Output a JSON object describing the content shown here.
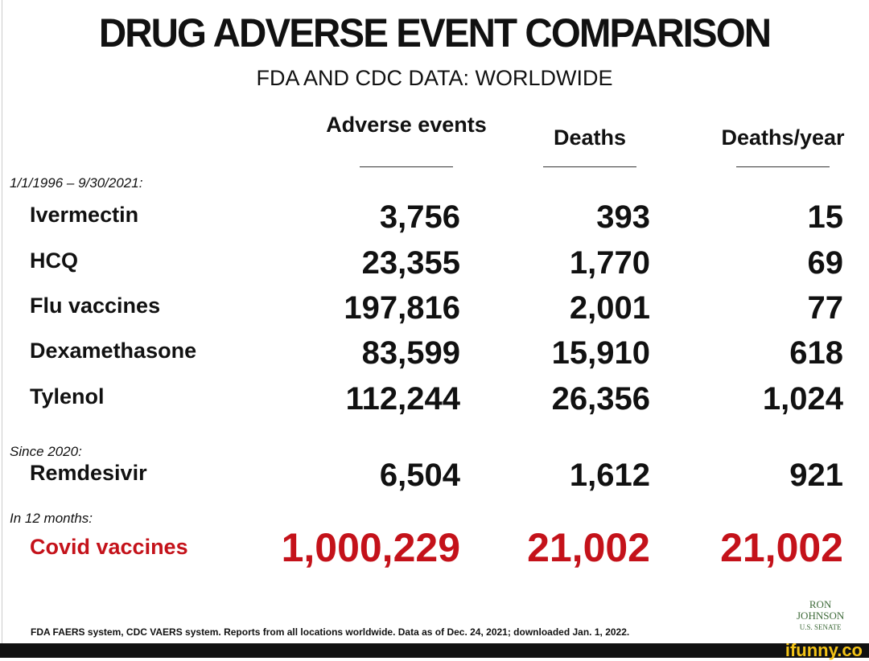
{
  "header": {
    "title": "DRUG ADVERSE EVENT COMPARISON",
    "subtitle": "FDA AND CDC DATA: WORLDWIDE"
  },
  "table": {
    "columns": [
      "Adverse events",
      "Deaths",
      "Deaths/year"
    ],
    "groups": [
      {
        "label": "1/1/1996 – 9/30/2021:",
        "rows": [
          {
            "name": "Ivermectin",
            "cells": [
              "3,756",
              "393",
              "15"
            ]
          },
          {
            "name": "HCQ",
            "cells": [
              "23,355",
              "1,770",
              "69"
            ]
          },
          {
            "name": "Flu vaccines",
            "cells": [
              "197,816",
              "2,001",
              "77"
            ]
          },
          {
            "name": "Dexamethasone",
            "cells": [
              "83,599",
              "15,910",
              "618"
            ]
          },
          {
            "name": "Tylenol",
            "cells": [
              "112,244",
              "26,356",
              "1,024"
            ]
          }
        ]
      },
      {
        "label": "Since 2020:",
        "rows": [
          {
            "name": "Remdesivir",
            "cells": [
              "6,504",
              "1,612",
              "921"
            ]
          }
        ]
      },
      {
        "label": "In 12 months:",
        "rows": [
          {
            "name": "Covid vaccines",
            "cells": [
              "1,000,229",
              "21,002",
              "21,002"
            ]
          }
        ]
      }
    ]
  },
  "footer": "FDA FAERS system, CDC VAERS system. Reports from all locations worldwide. Data as of Dec. 24, 2021; downloaded Jan. 1, 2022.",
  "logo": {
    "line1": "RON",
    "line2": "JOHNSON",
    "line3": "U.S. SENATE"
  },
  "watermark": "ifunny.co"
}
